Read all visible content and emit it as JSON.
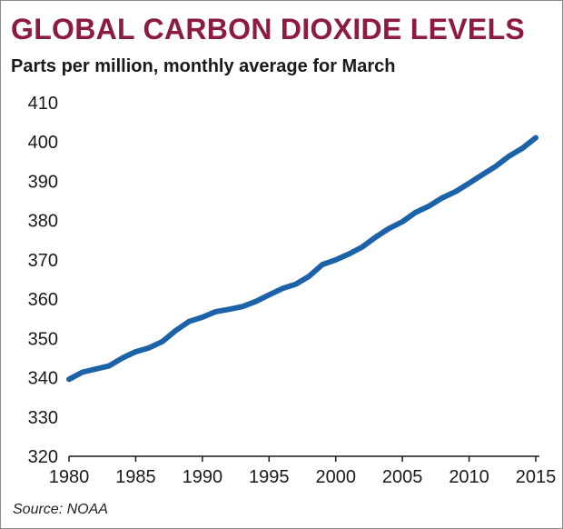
{
  "chart_data": {
    "type": "line",
    "title": "GLOBAL CARBON DIOXIDE LEVELS",
    "subtitle": "Parts per million, monthly average for March",
    "source": "Source: NOAA",
    "xlabel": "",
    "ylabel": "",
    "xlim": [
      1980,
      2015
    ],
    "ylim": [
      320,
      410
    ],
    "x_ticks": [
      "1980",
      "1985",
      "1990",
      "1995",
      "2000",
      "2005",
      "2010",
      "2015"
    ],
    "y_ticks": [
      "410",
      "400",
      "390",
      "380",
      "370",
      "360",
      "350",
      "340",
      "330",
      "320"
    ],
    "grid": false,
    "line_color": "#1b62a8",
    "title_color": "#8d1b3d",
    "series": [
      {
        "x": [
          1980,
          1981,
          1982,
          1983,
          1984,
          1985,
          1986,
          1987,
          1988,
          1989,
          1990,
          1991,
          1992,
          1993,
          1994,
          1995,
          1996,
          1997,
          1998,
          1999,
          2000,
          2001,
          2002,
          2003,
          2004,
          2005,
          2006,
          2007,
          2008,
          2009,
          2010,
          2011,
          2012,
          2013,
          2014,
          2015
        ],
        "y": [
          339.6,
          341.4,
          342.2,
          343.0,
          345.0,
          346.6,
          347.6,
          349.2,
          352.0,
          354.3,
          355.4,
          356.8,
          357.4,
          358.1,
          359.4,
          361.1,
          362.7,
          363.8,
          365.8,
          368.8,
          370.0,
          371.5,
          373.3,
          375.8,
          378.0,
          379.7,
          382.1,
          383.7,
          385.8,
          387.4,
          389.5,
          391.7,
          393.8,
          396.4,
          398.4,
          401.1
        ]
      }
    ]
  }
}
